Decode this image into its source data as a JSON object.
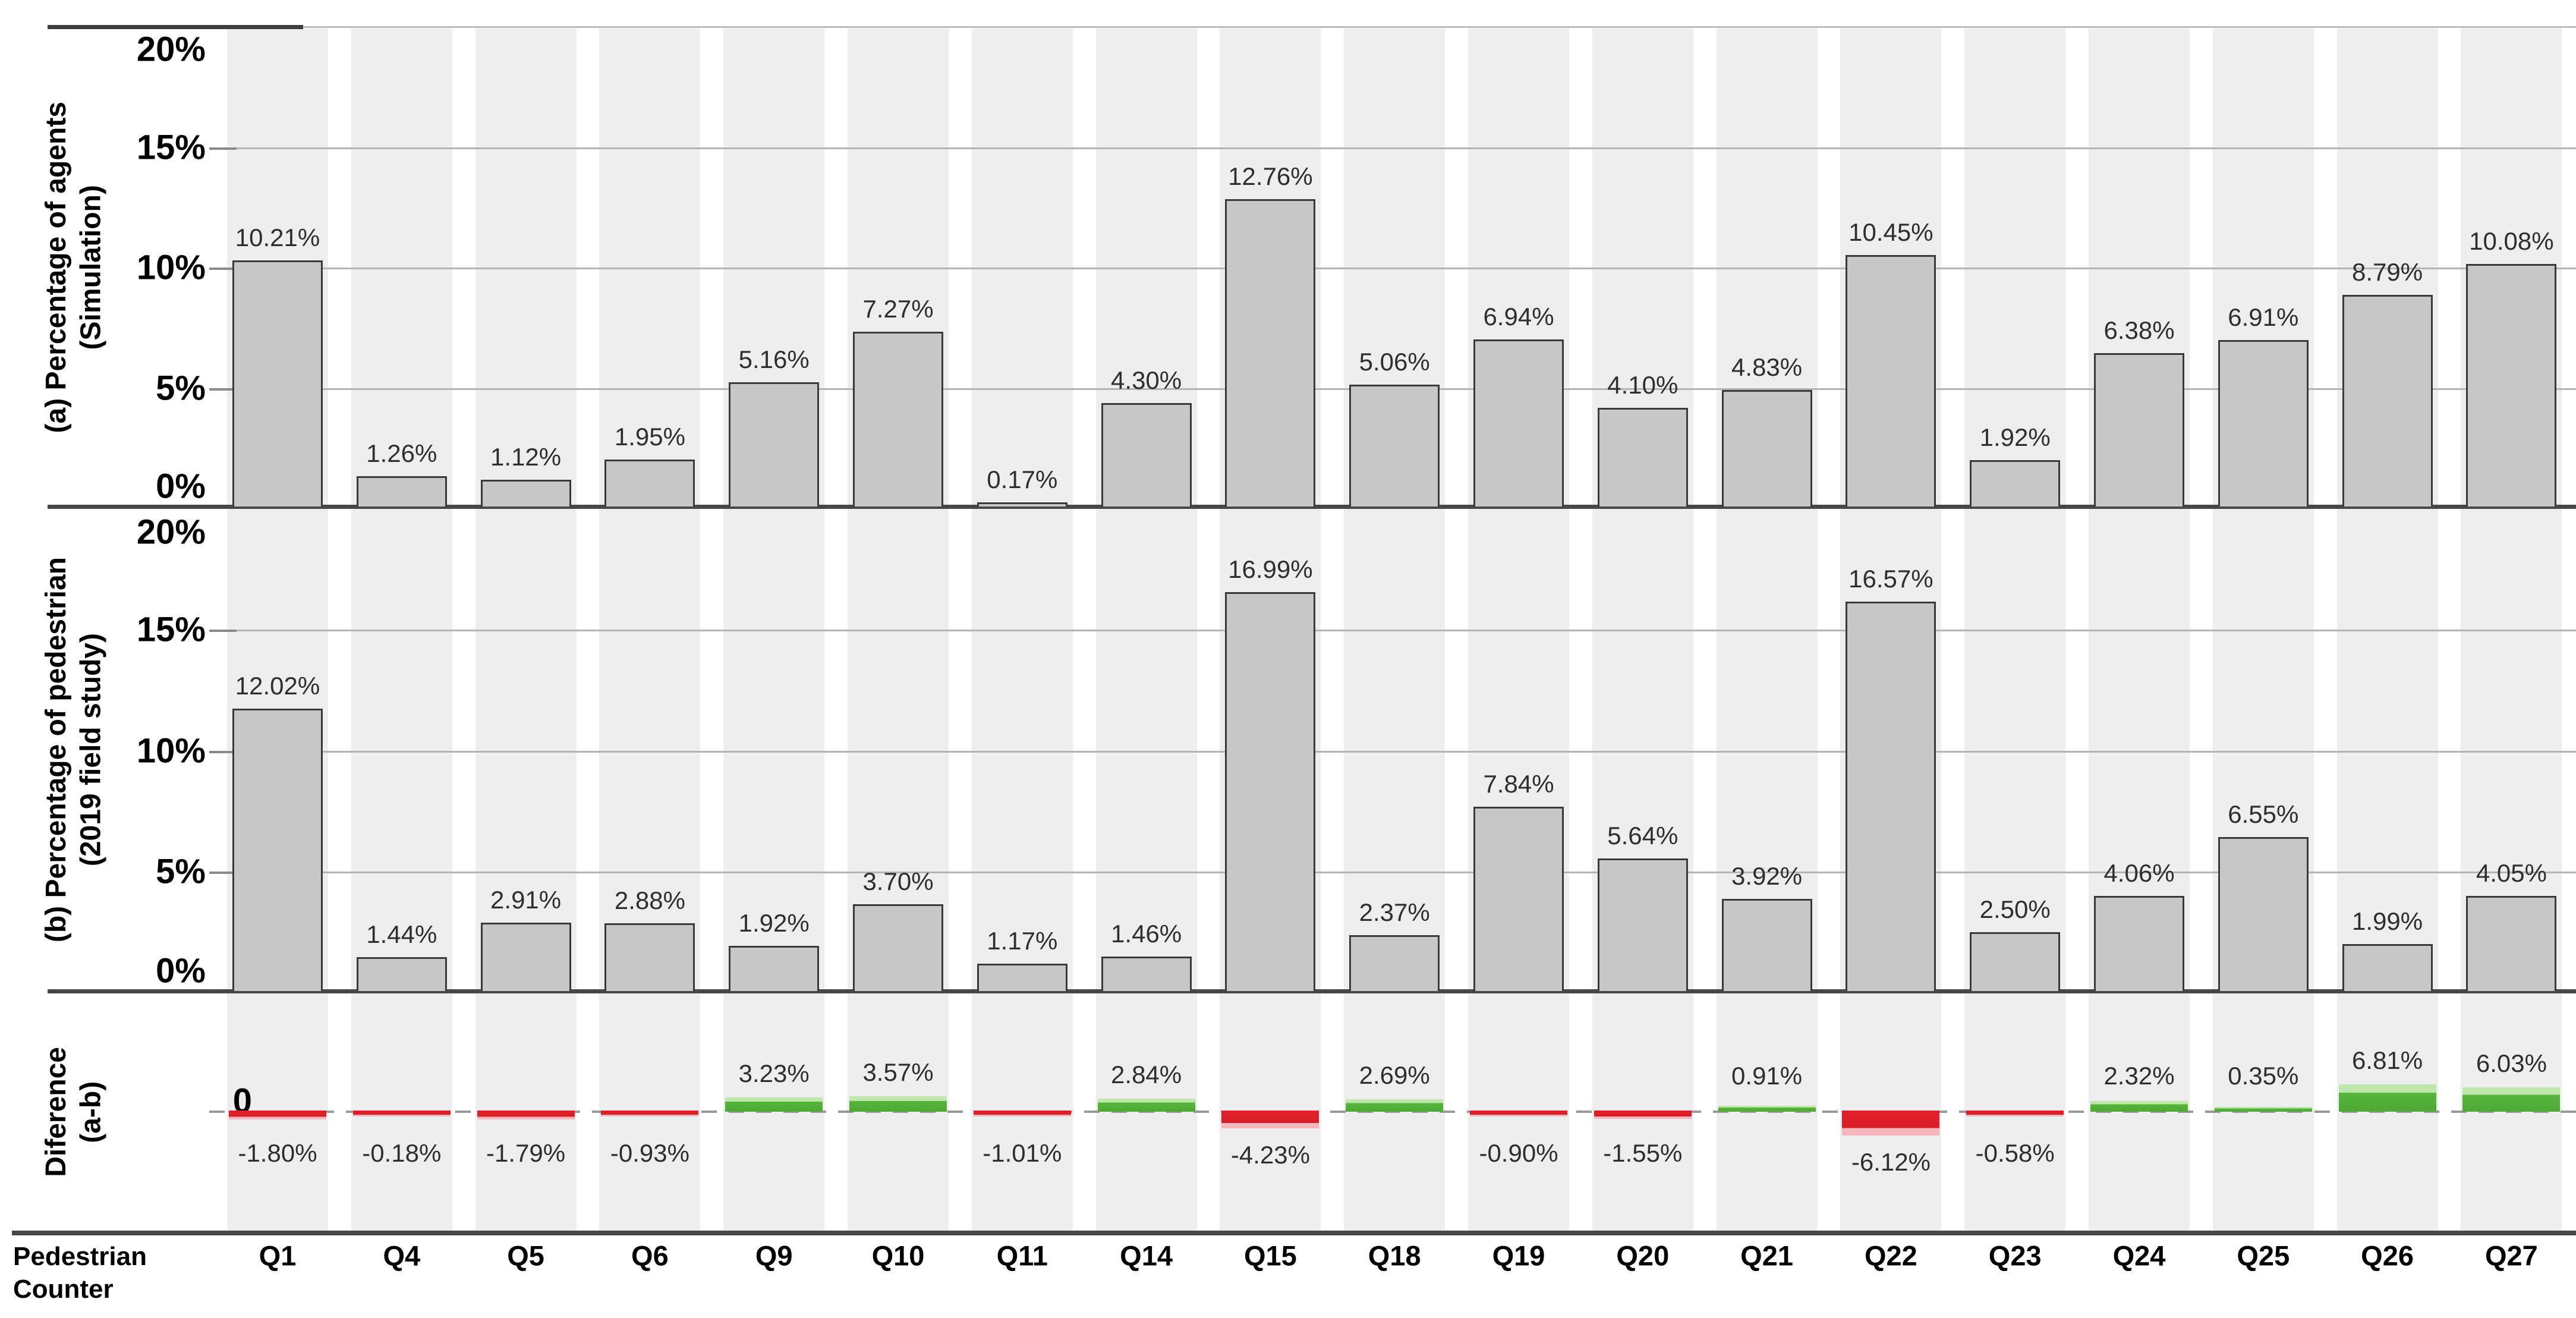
{
  "meta": {
    "colors": {
      "bar_fill": "#c7c7c7",
      "bar_border": "#3a3a3a",
      "band_background": "#eeeeee",
      "gridline": "#b4b4b4",
      "axis_line": "#474747",
      "positive_diff_green": "#56b53b",
      "positive_diff_green_light": "#c0e7ab",
      "negative_diff_red": "#e3212a",
      "negative_diff_red_light": "#f5b6bd",
      "value_label": "#2e2e2e"
    }
  },
  "y_axis": {
    "ticks_top_panels": [
      "20%",
      "15%",
      "10%",
      "5%",
      "0%"
    ],
    "diff_zero_tick": "0"
  },
  "x_axis": {
    "title_line1": "Pedestrian",
    "title_line2": "Counter"
  },
  "panels": {
    "a": {
      "title_line1": "(a) Percentage of agents",
      "title_line2": "(Simulation)"
    },
    "b": {
      "title_line1": "(b) Percentage of pedestrian",
      "title_line2": "(2019 field study)"
    },
    "diff": {
      "title_line1": "Diference",
      "title_line2": "(a-b)"
    }
  },
  "chart_data": {
    "type": "bar",
    "categories": [
      "Q1",
      "Q4",
      "Q5",
      "Q6",
      "Q9",
      "Q10",
      "Q11",
      "Q14",
      "Q15",
      "Q18",
      "Q19",
      "Q20",
      "Q21",
      "Q22",
      "Q23",
      "Q24",
      "Q25",
      "Q26",
      "Q27"
    ],
    "series": [
      {
        "name": "(a) Percentage of agents (Simulation)",
        "unit": "%",
        "values": [
          10.21,
          1.26,
          1.12,
          1.95,
          5.16,
          7.27,
          0.17,
          4.3,
          12.76,
          5.06,
          6.94,
          4.1,
          4.83,
          10.45,
          1.92,
          6.38,
          6.91,
          8.79,
          10.08
        ]
      },
      {
        "name": "(b) Percentage of pedestrian (2019 field study)",
        "unit": "%",
        "values": [
          12.02,
          1.44,
          2.91,
          2.88,
          1.92,
          3.7,
          1.17,
          1.46,
          16.99,
          2.37,
          7.84,
          5.64,
          3.92,
          16.57,
          2.5,
          4.06,
          6.55,
          1.99,
          4.05
        ]
      },
      {
        "name": "Diference (a-b)",
        "unit": "%",
        "values": [
          -1.8,
          -0.18,
          -1.79,
          -0.93,
          3.23,
          3.57,
          -1.01,
          2.84,
          -4.23,
          2.69,
          -0.9,
          -1.55,
          0.91,
          -6.12,
          -0.58,
          2.32,
          0.35,
          6.81,
          6.03
        ]
      }
    ],
    "ylim_top_panels": [
      0,
      20
    ],
    "gridlines_pct": [
      5,
      10,
      15
    ],
    "grid": "horizontal",
    "xlabel": "Pedestrian Counter",
    "legend": "none"
  }
}
